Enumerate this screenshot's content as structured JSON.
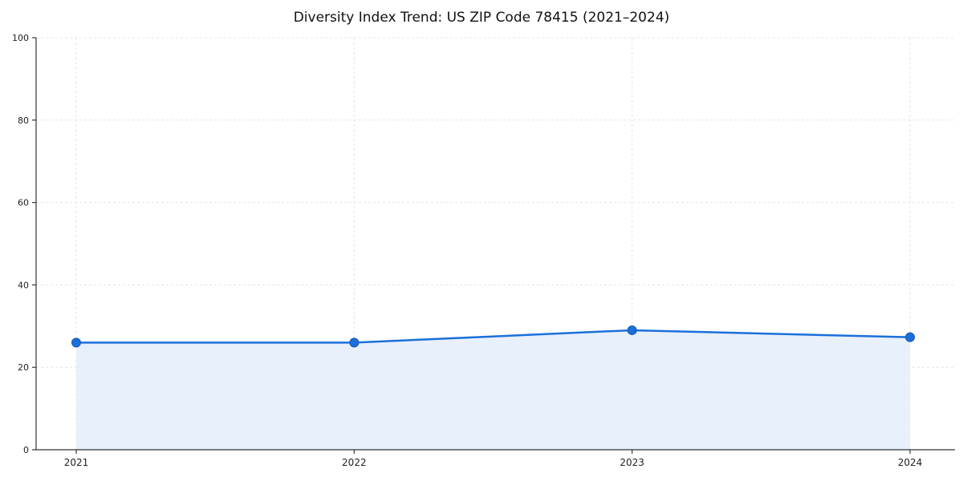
{
  "chart_data": {
    "type": "line",
    "title": "Diversity Index Trend: US ZIP Code 78415 (2021–2024)",
    "x": [
      2021,
      2022,
      2023,
      2024
    ],
    "xticks": [
      "2021",
      "2022",
      "2023",
      "2024"
    ],
    "series": [
      {
        "name": "Diversity Index",
        "values": [
          26,
          26,
          29,
          27.3
        ]
      }
    ],
    "ylim": [
      0,
      100
    ],
    "yticks": [
      0,
      20,
      40,
      60,
      80,
      100
    ],
    "grid": true,
    "grid_style": "dashed",
    "legend_position": "none",
    "colors": {
      "line": "#1b6fdb",
      "marker_fill": "#1b6fdb",
      "marker_edge": "#1256ad",
      "area_fill": "#e8f0fc",
      "grid": "#e4e4e4",
      "axis": "#333333",
      "title": "#111111",
      "tick_text": "#222222"
    }
  }
}
